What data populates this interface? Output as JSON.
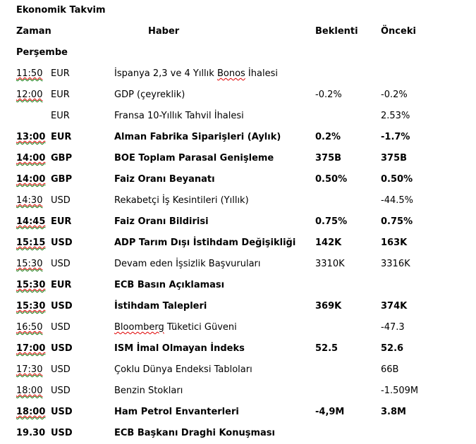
{
  "title": "Ekonomik Takvim",
  "table": {
    "columns": {
      "time": "Zaman",
      "event": "Haber",
      "forecast": "Beklenti",
      "previous": "Önceki"
    },
    "day": "Perşembe",
    "rows": [
      {
        "time": "11:50",
        "time_misspelled": true,
        "currency": "EUR",
        "event": "İspanya 2,3 ve 4 Yıllık Bonos İhalesi",
        "misspelled_word": "Bonos",
        "forecast": "",
        "previous": "",
        "bold": false
      },
      {
        "time": "12:00",
        "time_misspelled": true,
        "currency": "EUR",
        "event": "GDP (çeyreklik)",
        "misspelled_word": "",
        "forecast": "-0.2%",
        "previous": "-0.2%",
        "bold": false
      },
      {
        "time": "",
        "time_misspelled": false,
        "currency": "EUR",
        "event": "Fransa 10-Yıllık Tahvil İhalesi",
        "misspelled_word": "",
        "forecast": "",
        "previous": "2.53%",
        "bold": false
      },
      {
        "time": "13:00",
        "time_misspelled": true,
        "currency": "EUR",
        "event": "Alman Fabrika Siparişleri (Aylık)",
        "misspelled_word": "",
        "forecast": "0.2%",
        "previous": "-1.7%",
        "bold": true
      },
      {
        "time": "14:00",
        "time_misspelled": true,
        "currency": "GBP",
        "event": "BOE Toplam Parasal Genişleme",
        "misspelled_word": "",
        "forecast": "375B",
        "previous": "375B",
        "bold": true
      },
      {
        "time": "14:00",
        "time_misspelled": true,
        "currency": "GBP",
        "event": "Faiz Oranı Beyanatı",
        "misspelled_word": "",
        "forecast": "0.50%",
        "previous": "0.50%",
        "bold": true
      },
      {
        "time": "14:30",
        "time_misspelled": true,
        "currency": "USD",
        "event": "Rekabetçi İş Kesintileri (Yıllık)",
        "misspelled_word": "",
        "forecast": "",
        "previous": "-44.5%",
        "bold": false
      },
      {
        "time": "14:45",
        "time_misspelled": true,
        "currency": "EUR",
        "event": "Faiz Oranı Bildirisi",
        "misspelled_word": "",
        "forecast": "0.75%",
        "previous": "0.75%",
        "bold": true
      },
      {
        "time": "15:15",
        "time_misspelled": true,
        "currency": "USD",
        "event": "ADP Tarım Dışı İstihdam Değişikliği",
        "misspelled_word": "",
        "forecast": "142K",
        "previous": "163K",
        "bold": true
      },
      {
        "time": "15:30",
        "time_misspelled": true,
        "currency": "USD",
        "event": "Devam eden İşsizlik Başvuruları",
        "misspelled_word": "",
        "forecast": "3310K",
        "previous": "3316K",
        "bold": false
      },
      {
        "time": "15:30",
        "time_misspelled": true,
        "currency": "EUR",
        "event": "ECB Basın Açıklaması",
        "misspelled_word": "",
        "forecast": "",
        "previous": "",
        "bold": true
      },
      {
        "time": "15:30",
        "time_misspelled": true,
        "currency": "USD",
        "event": "İstihdam Talepleri",
        "misspelled_word": "",
        "forecast": "369K",
        "previous": "374K",
        "bold": true
      },
      {
        "time": "16:50",
        "time_misspelled": true,
        "currency": "USD",
        "event": "Bloomberg Tüketici Güveni",
        "misspelled_word": "Bloomberg",
        "forecast": "",
        "previous": "-47.3",
        "bold": false
      },
      {
        "time": "17:00",
        "time_misspelled": true,
        "currency": "USD",
        "event": "ISM İmal Olmayan İndeks",
        "misspelled_word": "",
        "forecast": "52.5",
        "previous": "52.6",
        "bold": true
      },
      {
        "time": "17:30",
        "time_misspelled": true,
        "currency": "USD",
        "event": "Çoklu Dünya Endeksi Tabloları",
        "misspelled_word": "",
        "forecast": "",
        "previous": "66B",
        "bold": false
      },
      {
        "time": "18:00",
        "time_misspelled": true,
        "currency": "USD",
        "event": "Benzin Stokları",
        "misspelled_word": "",
        "forecast": "",
        "previous": "-1.509M",
        "bold": false
      },
      {
        "time": "18:00",
        "time_misspelled": true,
        "currency": "USD",
        "event": "Ham Petrol Envanterleri",
        "misspelled_word": "",
        "forecast": "-4,9M",
        "previous": "3.8M",
        "bold": true
      },
      {
        "time": "19.30",
        "time_misspelled": false,
        "currency": "USD",
        "event": "ECB Başkanı Draghi Konuşması",
        "misspelled_word": "",
        "forecast": "",
        "previous": "",
        "bold": true
      }
    ]
  },
  "styles": {
    "text_color": "#000000",
    "background": "#ffffff",
    "spellcheck_red": "#e00000",
    "grammar_green": "#0f7d0f"
  }
}
